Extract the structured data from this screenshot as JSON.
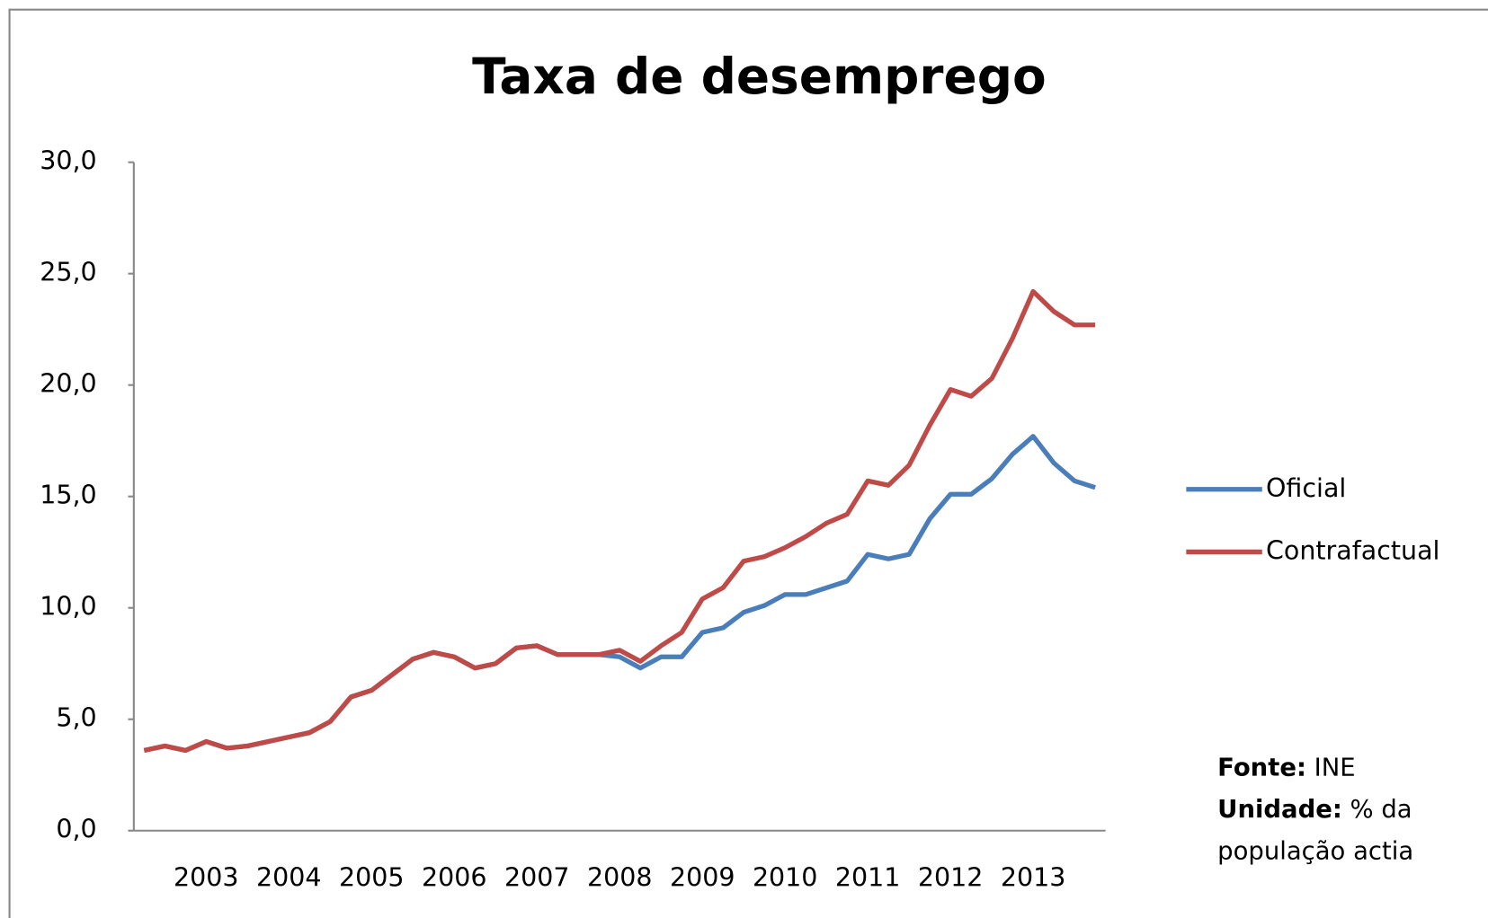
{
  "chart_data": {
    "type": "line",
    "title": "Taxa de desemprego",
    "categories": [
      null,
      null,
      null,
      "2003",
      null,
      null,
      null,
      "2004",
      null,
      null,
      null,
      "2005",
      null,
      null,
      null,
      "2006",
      null,
      null,
      null,
      "2007",
      null,
      null,
      null,
      "2008",
      null,
      null,
      null,
      "2009",
      null,
      null,
      null,
      "2010",
      null,
      null,
      null,
      "2011",
      null,
      null,
      null,
      "2012",
      null,
      null,
      null,
      "2013",
      null,
      null,
      null
    ],
    "series": [
      {
        "name": "Oficial",
        "color": "#4a7ebb",
        "values": [
          3.6,
          3.8,
          3.6,
          4.0,
          3.7,
          3.8,
          4.0,
          4.2,
          4.4,
          4.9,
          6.0,
          6.3,
          7.0,
          7.7,
          8.0,
          7.8,
          7.3,
          7.5,
          8.2,
          8.3,
          7.9,
          7.9,
          7.9,
          7.8,
          7.3,
          7.8,
          7.8,
          8.9,
          9.1,
          9.8,
          10.1,
          10.6,
          10.6,
          10.9,
          11.2,
          12.4,
          12.2,
          12.4,
          14.0,
          15.1,
          15.1,
          15.8,
          16.9,
          17.7,
          16.5,
          15.7,
          15.4
        ]
      },
      {
        "name": "Contrafactual",
        "color": "#be4b48",
        "values": [
          3.6,
          3.8,
          3.6,
          4.0,
          3.7,
          3.8,
          4.0,
          4.2,
          4.4,
          4.9,
          6.0,
          6.3,
          7.0,
          7.7,
          8.0,
          7.8,
          7.3,
          7.5,
          8.2,
          8.3,
          7.9,
          7.9,
          7.9,
          8.1,
          7.6,
          8.3,
          8.9,
          10.4,
          10.9,
          12.1,
          12.3,
          12.7,
          13.2,
          13.8,
          14.2,
          15.7,
          15.5,
          16.4,
          18.2,
          19.8,
          19.5,
          20.3,
          22.1,
          24.2,
          23.3,
          22.7,
          22.7
        ]
      }
    ],
    "ylim": [
      0,
      30
    ],
    "yticks": [
      {
        "value": 0,
        "label": "0,0"
      },
      {
        "value": 5,
        "label": "5,0"
      },
      {
        "value": 10,
        "label": "10,0"
      },
      {
        "value": 15,
        "label": "15,0"
      },
      {
        "value": 20,
        "label": "20,0"
      },
      {
        "value": 25,
        "label": "25,0"
      },
      {
        "value": 30,
        "label": "30,0"
      }
    ],
    "grid": false,
    "legend": "right",
    "annotations": {
      "source_label": "Fonte:",
      "source": "INE",
      "unit_label": "Unidade:",
      "unit": "% da população actia"
    }
  }
}
